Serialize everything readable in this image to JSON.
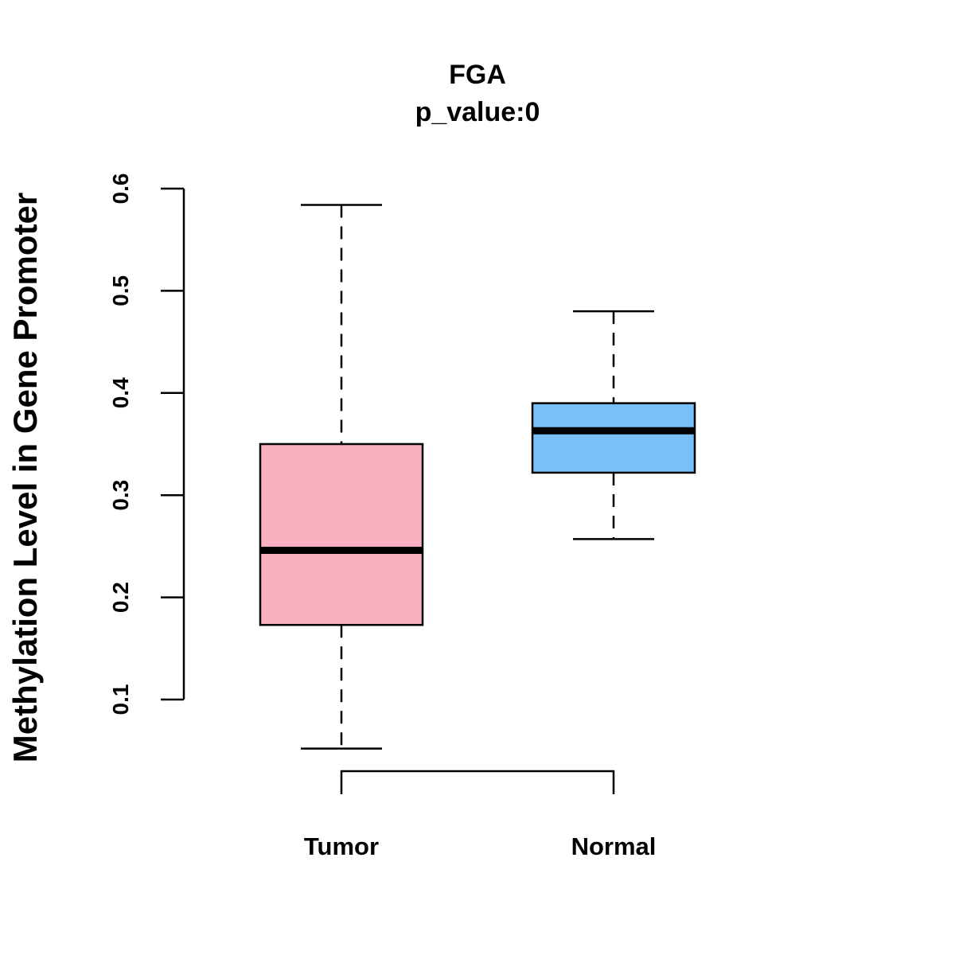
{
  "chart_data": {
    "type": "boxplot",
    "title": "FGA",
    "subtitle": "p_value:0",
    "xlabel": "",
    "ylabel": "Methylation Level in Gene Promoter",
    "ylim": [
      0.1,
      0.6
    ],
    "yticks": [
      0.1,
      0.2,
      0.3,
      0.4,
      0.5,
      0.6
    ],
    "ytick_labels": [
      "0.1",
      "0.2",
      "0.3",
      "0.4",
      "0.5",
      "0.6"
    ],
    "categories": [
      "Tumor",
      "Normal"
    ],
    "series": [
      {
        "name": "Tumor",
        "min": 0.052,
        "q1": 0.173,
        "median": 0.246,
        "q3": 0.35,
        "max": 0.584,
        "color": "#FBB0C1"
      },
      {
        "name": "Normal",
        "min": 0.257,
        "q1": 0.322,
        "median": 0.363,
        "q3": 0.39,
        "max": 0.48,
        "color": "#77C0F8"
      }
    ],
    "grid": false,
    "comparison_bracket": [
      "Tumor",
      "Normal"
    ]
  }
}
